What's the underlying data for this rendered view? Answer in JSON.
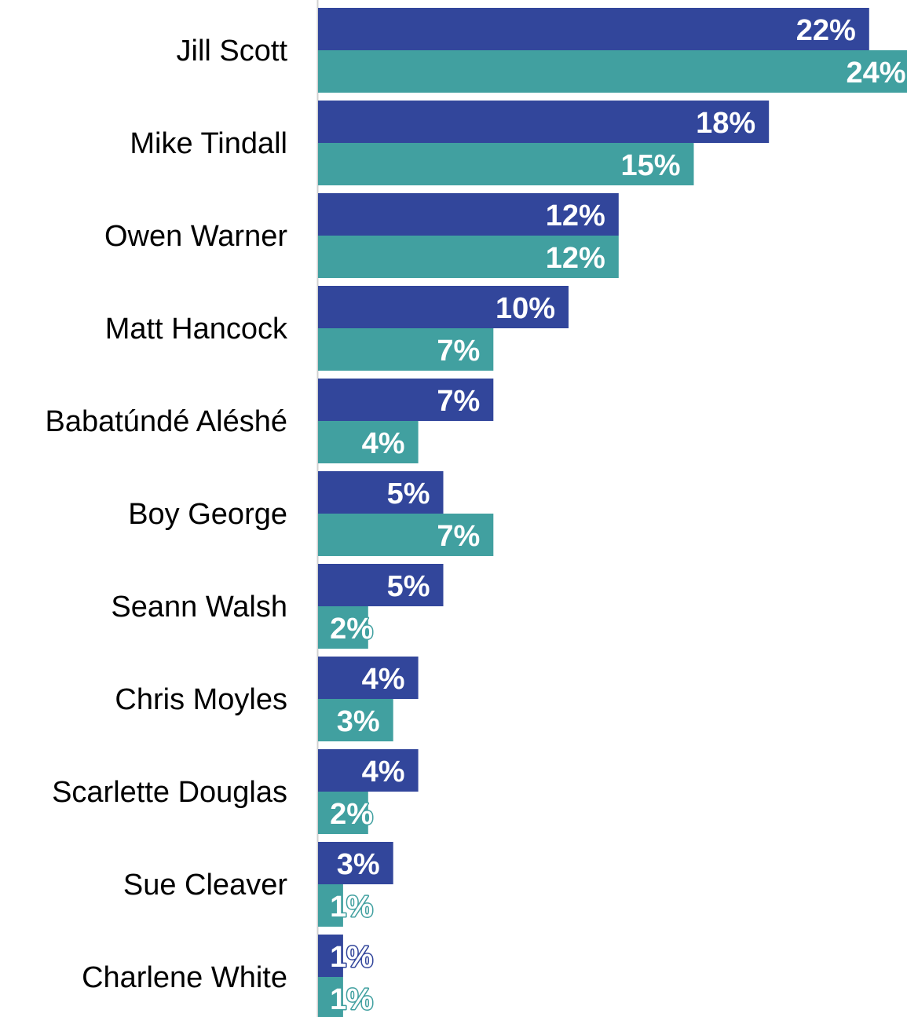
{
  "chart_data": {
    "type": "bar",
    "orientation": "horizontal",
    "title": "",
    "xlabel": "",
    "ylabel": "",
    "value_suffix": "%",
    "xlim": [
      0,
      24
    ],
    "grid": false,
    "legend": "none",
    "categories": [
      "Jill Scott",
      "Mike Tindall",
      "Owen Warner",
      "Matt Hancock",
      "Babatúndé Aléshé",
      "Boy George",
      "Seann Walsh",
      "Chris Moyles",
      "Scarlette Douglas",
      "Sue Cleaver",
      "Charlene White"
    ],
    "series": [
      {
        "color": "#32469b",
        "values": [
          22,
          18,
          12,
          10,
          7,
          5,
          5,
          4,
          4,
          3,
          1
        ]
      },
      {
        "color": "#41a0a0",
        "values": [
          24,
          15,
          12,
          7,
          4,
          7,
          2,
          3,
          2,
          1,
          1
        ]
      }
    ]
  }
}
